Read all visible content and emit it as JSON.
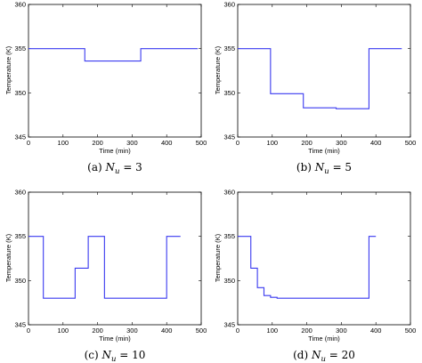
{
  "chart_data": [
    {
      "type": "line",
      "xlabel": "Time (min)",
      "ylabel": "Temperature (K)",
      "xlim": [
        0,
        500
      ],
      "ylim": [
        345,
        360
      ],
      "xticks": [
        "0",
        "100",
        "200",
        "300",
        "400",
        "500"
      ],
      "yticks": [
        "345",
        "350",
        "355",
        "360"
      ],
      "caption": {
        "prefix": "(a) ",
        "symbol": "N",
        "subscript": "u",
        "suffix": " = 3"
      },
      "x": [
        0,
        163,
        163,
        325,
        325,
        490
      ],
      "y": [
        355,
        355,
        353.6,
        353.6,
        355,
        355
      ]
    },
    {
      "type": "line",
      "xlabel": "Time (min)",
      "ylabel": "Temperature (K)",
      "xlim": [
        0,
        500
      ],
      "ylim": [
        345,
        360
      ],
      "xticks": [
        "0",
        "100",
        "200",
        "300",
        "400",
        "500"
      ],
      "yticks": [
        "345",
        "350",
        "355",
        "360"
      ],
      "caption": {
        "prefix": "(b) ",
        "symbol": "N",
        "subscript": "u",
        "suffix": " = 5"
      },
      "x": [
        0,
        95,
        95,
        190,
        190,
        285,
        285,
        380,
        380,
        475
      ],
      "y": [
        355,
        355,
        349.9,
        349.9,
        348.3,
        348.3,
        348.2,
        348.2,
        355,
        355
      ]
    },
    {
      "type": "line",
      "xlabel": "Time (min)",
      "ylabel": "Temperature (K)",
      "xlim": [
        0,
        500
      ],
      "ylim": [
        345,
        360
      ],
      "xticks": [
        "0",
        "100",
        "200",
        "300",
        "400",
        "500"
      ],
      "yticks": [
        "345",
        "350",
        "355",
        "360"
      ],
      "caption": {
        "prefix": "(c) ",
        "symbol": "N",
        "subscript": "u",
        "suffix": " = 10"
      },
      "x": [
        0,
        43,
        43,
        135,
        135,
        173,
        173,
        220,
        220,
        400,
        400,
        440
      ],
      "y": [
        355,
        355,
        348,
        348,
        351.4,
        351.4,
        355,
        355,
        348,
        348,
        355,
        355
      ]
    },
    {
      "type": "line",
      "xlabel": "Time (min)",
      "ylabel": "Temperature (K)",
      "xlim": [
        0,
        500
      ],
      "ylim": [
        345,
        360
      ],
      "xticks": [
        "0",
        "100",
        "200",
        "300",
        "400",
        "500"
      ],
      "yticks": [
        "345",
        "350",
        "355",
        "360"
      ],
      "caption": {
        "prefix": "(d) ",
        "symbol": "N",
        "subscript": "u",
        "suffix": " = 20"
      },
      "x": [
        0,
        38,
        38,
        57,
        57,
        76,
        76,
        95,
        95,
        114,
        114,
        380,
        380,
        400
      ],
      "y": [
        355,
        355,
        351.4,
        351.4,
        349.2,
        349.2,
        348.3,
        348.3,
        348.1,
        348.1,
        348,
        348,
        355,
        355
      ]
    }
  ]
}
